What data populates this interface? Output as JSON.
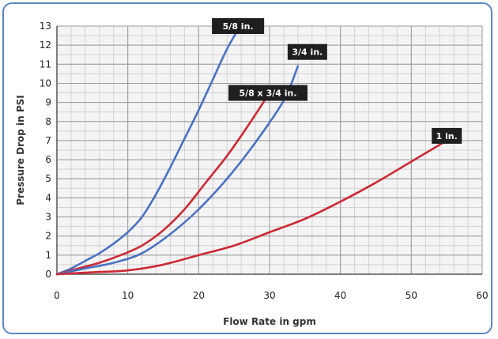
{
  "chart_data": {
    "type": "line",
    "xlabel": "Flow Rate in gpm",
    "ylabel": "Pressure Drop in PSI",
    "xlim": [
      0,
      60
    ],
    "ylim": [
      0,
      13
    ],
    "x_ticks": [
      0,
      10,
      20,
      30,
      40,
      50,
      60
    ],
    "y_ticks": [
      0,
      1,
      2,
      3,
      4,
      5,
      6,
      7,
      8,
      9,
      10,
      11,
      12,
      13
    ],
    "grid": true,
    "legend": "none",
    "series": [
      {
        "name": "5/8 in.",
        "color": "#4a72c2",
        "x": [
          0,
          2,
          4,
          6,
          8,
          10,
          12,
          14,
          16,
          18,
          20,
          22,
          24,
          26
        ],
        "y": [
          0,
          0.3,
          0.7,
          1.1,
          1.6,
          2.2,
          3.0,
          4.2,
          5.6,
          7.1,
          8.6,
          10.2,
          11.8,
          13.4
        ]
      },
      {
        "name": "5/8 x 3/4 in.",
        "color": "#cc2936",
        "x": [
          0,
          3,
          6,
          9,
          12,
          15,
          18,
          21,
          24,
          27,
          30
        ],
        "y": [
          0,
          0.3,
          0.6,
          1.0,
          1.5,
          2.3,
          3.4,
          4.8,
          6.2,
          7.8,
          9.5
        ]
      },
      {
        "name": "3/4 in.",
        "color": "#4a72c2",
        "x": [
          0,
          4,
          8,
          12,
          16,
          20,
          24,
          28,
          32,
          34
        ],
        "y": [
          0,
          0.3,
          0.6,
          1.1,
          2.1,
          3.4,
          5.0,
          6.9,
          9.1,
          10.9
        ]
      },
      {
        "name": "1 in.",
        "color": "#cc2936",
        "x": [
          0,
          5,
          10,
          15,
          20,
          25,
          30,
          35,
          40,
          45,
          50,
          55
        ],
        "y": [
          0,
          0.1,
          0.2,
          0.5,
          1.0,
          1.5,
          2.2,
          2.9,
          3.8,
          4.8,
          5.9,
          7.0
        ]
      }
    ]
  }
}
